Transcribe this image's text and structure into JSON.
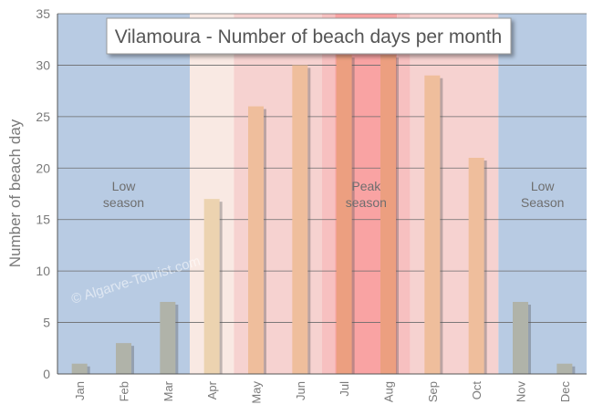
{
  "chart_data": {
    "type": "bar",
    "title": "Vilamoura - Number of beach days per month",
    "ylabel": "Number of beach day",
    "xlabel": "",
    "ylim": [
      0,
      35
    ],
    "yticks": [
      0,
      5,
      10,
      15,
      20,
      25,
      30,
      35
    ],
    "grid": true,
    "categories": [
      "Jan",
      "Feb",
      "Mar",
      "Apr",
      "May",
      "Jun",
      "Jul",
      "Aug",
      "Sep",
      "Oct",
      "Nov",
      "Dec"
    ],
    "values": [
      1,
      3,
      7,
      17,
      26,
      30,
      31,
      31,
      29,
      21,
      7,
      1
    ],
    "bar_colors": [
      "#b0b3a9",
      "#b0b3a9",
      "#b0b3a9",
      "#ecd3b0",
      "#efbe9c",
      "#efbe9c",
      "#ec9f80",
      "#ec9f80",
      "#efbe9c",
      "#efbe9c",
      "#b0b3a9",
      "#b0b3a9"
    ],
    "season_bands": [
      {
        "label_lines": [
          "Low",
          "season"
        ],
        "from": 0,
        "to": 3,
        "color": "#b8cbe3"
      },
      {
        "label_lines": [],
        "from": 3,
        "to": 4,
        "color": "#f9e9e3"
      },
      {
        "label_lines": [],
        "from": 4,
        "to": 6,
        "color": "#f6d2d0"
      },
      {
        "label_lines": [],
        "from": 6,
        "to": 6.3,
        "color": "#f7c0c0"
      },
      {
        "label_lines": [
          "Peak",
          "season"
        ],
        "from": 6.3,
        "to": 7.7,
        "color": "#f9a3a3"
      },
      {
        "label_lines": [],
        "from": 7.7,
        "to": 8,
        "color": "#f7c0c0"
      },
      {
        "label_lines": [],
        "from": 8,
        "to": 10,
        "color": "#f6d2d0"
      },
      {
        "label_lines": [
          "Low",
          "Season"
        ],
        "from": 10,
        "to": 12,
        "color": "#b8cbe3"
      }
    ],
    "watermark": "© Algarve-Tourist.com"
  }
}
